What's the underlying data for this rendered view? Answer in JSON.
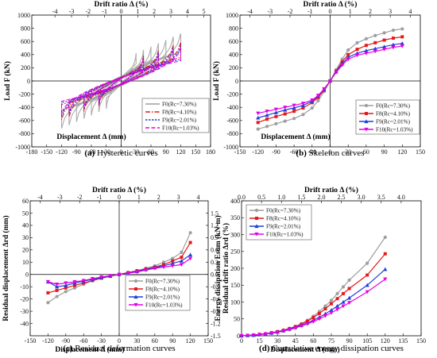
{
  "chart_data": [
    {
      "type": "line",
      "panel": "a",
      "caption_letter": "(a)",
      "caption_text": " Hysteretic curves",
      "xlabel": "Displacement Δ (mm)",
      "ylabel": "Load F (kN)",
      "top_xlabel": "Drift ratio Δ (%)",
      "xlim": [
        -180,
        180
      ],
      "ylim": [
        -1000,
        1000
      ],
      "x_ticks": [
        -180,
        -150,
        -120,
        -90,
        -60,
        -30,
        0,
        30,
        60,
        90,
        120,
        150,
        180
      ],
      "y_ticks": [
        -1000,
        -800,
        -600,
        -400,
        -200,
        0,
        200,
        400,
        600,
        800,
        1000
      ],
      "top_ticks": [
        -4,
        -3,
        -2,
        -1,
        0,
        1,
        2,
        3,
        4,
        5
      ],
      "top_per_mm": 33.333,
      "legend_position": "bottom-right",
      "series": [
        {
          "name": "F0(Rc=7.30%)",
          "color": "#9e9e9e",
          "dash": "",
          "amp": 800,
          "xmax": 120,
          "loops": [
            30,
            45,
            60,
            75,
            90,
            105,
            120
          ]
        },
        {
          "name": "F8(Rc=4.10%)",
          "color": "#e41a1c",
          "dash": "6,2,1.5,2",
          "amp": 650,
          "xmax": 120,
          "loops": [
            45,
            75,
            105,
            120
          ]
        },
        {
          "name": "F9(Rc=2.01%)",
          "color": "#1f3fd6",
          "dash": "2.5,1.5",
          "amp": 600,
          "xmax": 120,
          "loops": [
            45,
            75,
            105,
            120
          ]
        },
        {
          "name": "F10(Rc=1.03%)",
          "color": "#e600e6",
          "dash": "5,2.5",
          "amp": 560,
          "xmax": 120,
          "loops": [
            45,
            75,
            105,
            120
          ]
        }
      ]
    },
    {
      "type": "line",
      "panel": "b",
      "caption_letter": "(b)",
      "caption_text": " Skeleton curves",
      "xlabel": "Displacement Δ (mm)",
      "ylabel": "Load F (kN)",
      "top_xlabel": "Drift ratio Δ (%)",
      "xlim": [
        -150,
        150
      ],
      "ylim": [
        -1000,
        1000
      ],
      "x_ticks": [
        -150,
        -120,
        -90,
        -60,
        -30,
        0,
        30,
        60,
        90,
        120,
        150
      ],
      "y_ticks": [
        -1000,
        -800,
        -600,
        -400,
        -200,
        0,
        200,
        400,
        600,
        800,
        1000
      ],
      "top_ticks": [
        -4,
        -3,
        -2,
        -1,
        0,
        1,
        2,
        3,
        4
      ],
      "top_per_mm": 33.333,
      "legend_position": "bottom-right",
      "x": [
        -120,
        -105,
        -90,
        -75,
        -60,
        -45,
        -30,
        -20,
        -10,
        0,
        10,
        20,
        30,
        45,
        60,
        75,
        90,
        105,
        120
      ],
      "series": [
        {
          "name": "F0(Rc=7.30%)",
          "color": "#9e9e9e",
          "marker": "circle",
          "values": [
            -730,
            -690,
            -650,
            -610,
            -570,
            -510,
            -410,
            -300,
            -160,
            0,
            170,
            330,
            470,
            580,
            640,
            690,
            730,
            770,
            790
          ]
        },
        {
          "name": "F8(Rc=4.10%)",
          "color": "#e41a1c",
          "marker": "square",
          "values": [
            -630,
            -580,
            -540,
            -500,
            -460,
            -410,
            -330,
            -250,
            -140,
            0,
            150,
            290,
            400,
            480,
            540,
            580,
            620,
            650,
            670
          ]
        },
        {
          "name": "F9(Rc=2.01%)",
          "color": "#1f3fd6",
          "marker": "triangle",
          "values": [
            -560,
            -520,
            -480,
            -440,
            -410,
            -370,
            -310,
            -230,
            -130,
            0,
            140,
            260,
            360,
            420,
            460,
            490,
            520,
            550,
            570
          ]
        },
        {
          "name": "F10(Rc=1.03%)",
          "color": "#e600e6",
          "marker": "triangle-down",
          "values": [
            -490,
            -460,
            -430,
            -400,
            -370,
            -340,
            -290,
            -220,
            -120,
            0,
            130,
            240,
            330,
            390,
            420,
            450,
            480,
            510,
            530
          ]
        }
      ]
    },
    {
      "type": "line",
      "panel": "c",
      "caption_letter": "(c)",
      "caption_text": " Residual deformation curves",
      "xlabel": "Displacement Δ (mm)",
      "ylabel": "Residual displacement Δrd (mm)",
      "right_ylabel": "Residual drift ratio Δrd (%)",
      "top_xlabel": "Drift ratio Δ (%)",
      "xlim": [
        -150,
        150
      ],
      "ylim": [
        -50,
        60
      ],
      "x_ticks": [
        -150,
        -120,
        -90,
        -60,
        -30,
        0,
        30,
        60,
        90,
        120,
        150
      ],
      "y_ticks": [
        -40,
        -30,
        -20,
        -10,
        0,
        10,
        20,
        30,
        40,
        50,
        60
      ],
      "right_ticks": [
        "1.5",
        "1.2",
        "0.9",
        "0.6",
        "0.3",
        "0.0",
        "-0.3",
        "-0.6",
        "-0.9",
        "-1.2",
        "-1.5"
      ],
      "right_ticks_at": [
        50,
        40,
        30,
        20,
        10,
        0,
        -10,
        -20,
        -30,
        -40,
        -50
      ],
      "top_ticks": [
        -4,
        -3,
        -2,
        -1,
        0,
        1,
        2,
        3,
        4
      ],
      "top_per_mm": 33.333,
      "legend_position": "bottom-right",
      "x": [
        -120,
        -105,
        -90,
        -75,
        -60,
        -45,
        -30,
        -15,
        0,
        15,
        30,
        45,
        60,
        75,
        90,
        105,
        120
      ],
      "series": [
        {
          "name": "F0(Rc=7.30%)",
          "color": "#9e9e9e",
          "marker": "circle",
          "values": [
            -23,
            -18,
            -14,
            -11,
            -8,
            -5,
            -3,
            -1.5,
            0,
            1.5,
            3,
            5,
            7,
            10,
            13,
            18,
            34
          ]
        },
        {
          "name": "F8(Rc=4.10%)",
          "color": "#e41a1c",
          "marker": "square",
          "values": [
            -15,
            -13,
            -11,
            -9,
            -7,
            -5,
            -3,
            -1.5,
            0,
            1.5,
            3,
            4.5,
            6,
            8,
            11,
            14,
            26
          ]
        },
        {
          "name": "F9(Rc=2.01%)",
          "color": "#1f3fd6",
          "marker": "triangle",
          "values": [
            -6,
            -10,
            -9,
            -7,
            -5.5,
            -4,
            -2.5,
            -1.2,
            0,
            1.2,
            2.5,
            4,
            5.5,
            7,
            9,
            11,
            16
          ]
        },
        {
          "name": "F10(Rc=1.03%)",
          "color": "#e600e6",
          "marker": "triangle-down",
          "values": [
            -6,
            -8,
            -7,
            -6,
            -5,
            -3.5,
            -2,
            -1,
            0,
            1,
            2,
            3.5,
            5,
            6,
            7,
            8,
            13
          ]
        }
      ]
    },
    {
      "type": "line",
      "panel": "d",
      "caption_letter": "(d)",
      "caption_text": " Cumulative energy dissipation curves",
      "xlabel": "Displacement Δ (mm)",
      "ylabel": "Energy dissipation Esum (kN·m)",
      "top_xlabel": "Drift ratio Δ (%)",
      "xlim": [
        0,
        150
      ],
      "ylim": [
        0,
        400
      ],
      "x_ticks": [
        0,
        15,
        30,
        45,
        60,
        75,
        90,
        105,
        120,
        135,
        150
      ],
      "y_ticks": [
        0,
        50,
        100,
        150,
        200,
        250,
        300,
        350,
        400
      ],
      "top_ticks": [
        "0.0",
        "0.5",
        "1.0",
        "1.5",
        "2.0",
        "2.5",
        "3.0",
        "3.5",
        "4.0"
      ],
      "top_values": [
        0,
        0.5,
        1,
        1.5,
        2,
        2.5,
        3,
        3.5,
        4
      ],
      "top_per_mm": 33.333,
      "legend_position": "top-left",
      "x": [
        0,
        5,
        10,
        15,
        20,
        25,
        30,
        35,
        40,
        45,
        50,
        55,
        60,
        65,
        70,
        75,
        80,
        85,
        90,
        105,
        120
      ],
      "series": [
        {
          "name": "F0(Rc=7.30%)",
          "color": "#9e9e9e",
          "marker": "circle",
          "values": [
            0,
            1,
            2,
            4,
            6,
            9,
            13,
            17,
            22,
            28,
            36,
            46,
            58,
            72,
            88,
            105,
            125,
            145,
            165,
            215,
            292
          ]
        },
        {
          "name": "F8(Rc=4.10%)",
          "color": "#e41a1c",
          "marker": "square",
          "values": [
            0,
            1,
            2,
            4,
            6,
            9,
            12,
            16,
            21,
            27,
            34,
            43,
            54,
            66,
            80,
            95,
            110,
            125,
            140,
            180,
            243
          ]
        },
        {
          "name": "F9(Rc=2.01%)",
          "color": "#1f3fd6",
          "marker": "triangle",
          "values": [
            0,
            1,
            2,
            3.5,
            5.5,
            8,
            11,
            15,
            20,
            25,
            31,
            38,
            46,
            55,
            65,
            76,
            88,
            100,
            112,
            150,
            197
          ]
        },
        {
          "name": "F10(Rc=1.03%)",
          "color": "#e600e6",
          "marker": "triangle-down",
          "values": [
            0,
            1,
            2,
            3.5,
            5,
            7.5,
            10,
            14,
            18,
            23,
            29,
            35,
            42,
            50,
            59,
            68,
            78,
            88,
            98,
            130,
            168
          ]
        }
      ]
    }
  ]
}
